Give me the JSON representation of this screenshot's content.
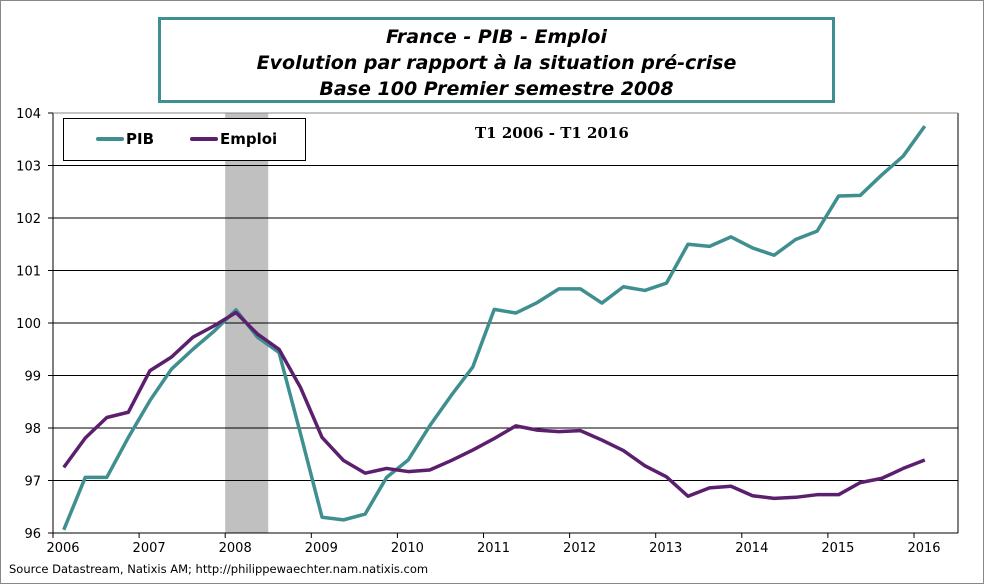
{
  "title": {
    "line1": "France - PIB - Emploi",
    "line2": "Evolution par rapport à la situation pré-crise",
    "line3": "Base 100 Premier semestre 2008"
  },
  "source": "Source Datastream, Natixis AM; http://philippewaechter.nam.natixis.com",
  "chart_data": {
    "type": "line",
    "title": "France - PIB - Emploi / Evolution par rapport à la situation pré-crise / Base 100 Premier semestre 2008",
    "annotation": "T1 2006 - T1 2016",
    "ylim": [
      96,
      104
    ],
    "yticks": [
      "96",
      "97",
      "98",
      "99",
      "100",
      "101",
      "102",
      "103",
      "104"
    ],
    "xticks": [
      "2006",
      "2007",
      "2008",
      "2009",
      "2010",
      "2011",
      "2012",
      "2013",
      "2014",
      "2015",
      "2016"
    ],
    "grid": "horizontal",
    "legend": "top-left",
    "shaded_period": [
      "2008-Q1",
      "2008-Q2"
    ],
    "x": [
      "2006-Q1",
      "2006-Q2",
      "2006-Q3",
      "2006-Q4",
      "2007-Q1",
      "2007-Q2",
      "2007-Q3",
      "2007-Q4",
      "2008-Q1",
      "2008-Q2",
      "2008-Q3",
      "2008-Q4",
      "2009-Q1",
      "2009-Q2",
      "2009-Q3",
      "2009-Q4",
      "2010-Q1",
      "2010-Q2",
      "2010-Q3",
      "2010-Q4",
      "2011-Q1",
      "2011-Q2",
      "2011-Q3",
      "2011-Q4",
      "2012-Q1",
      "2012-Q2",
      "2012-Q3",
      "2012-Q4",
      "2013-Q1",
      "2013-Q2",
      "2013-Q3",
      "2013-Q4",
      "2014-Q1",
      "2014-Q2",
      "2014-Q3",
      "2014-Q4",
      "2015-Q1",
      "2015-Q2",
      "2015-Q3",
      "2015-Q4",
      "2016-Q1"
    ],
    "series": [
      {
        "name": "PIB",
        "color": "#3f8f90",
        "values": [
          96.06,
          97.06,
          97.06,
          97.82,
          98.52,
          99.12,
          99.5,
          99.85,
          100.25,
          99.73,
          99.44,
          97.89,
          96.3,
          96.25,
          96.36,
          97.06,
          97.39,
          98.04,
          98.62,
          99.16,
          100.26,
          100.19,
          100.39,
          100.65,
          100.65,
          100.38,
          100.69,
          100.62,
          100.76,
          101.5,
          101.46,
          101.64,
          101.43,
          101.29,
          101.59,
          101.75,
          102.42,
          102.43,
          102.82,
          103.18,
          103.75
        ]
      },
      {
        "name": "Emploi",
        "color": "#5b1f6e",
        "values": [
          97.25,
          97.81,
          98.2,
          98.3,
          99.09,
          99.35,
          99.73,
          99.95,
          100.2,
          99.79,
          99.5,
          98.77,
          97.82,
          97.38,
          97.14,
          97.23,
          97.17,
          97.2,
          97.38,
          97.58,
          97.8,
          98.04,
          97.96,
          97.93,
          97.95,
          97.77,
          97.57,
          97.28,
          97.07,
          96.7,
          96.86,
          96.89,
          96.71,
          96.66,
          96.68,
          96.73,
          96.73,
          96.96,
          97.04,
          97.23,
          97.39
        ]
      }
    ]
  }
}
